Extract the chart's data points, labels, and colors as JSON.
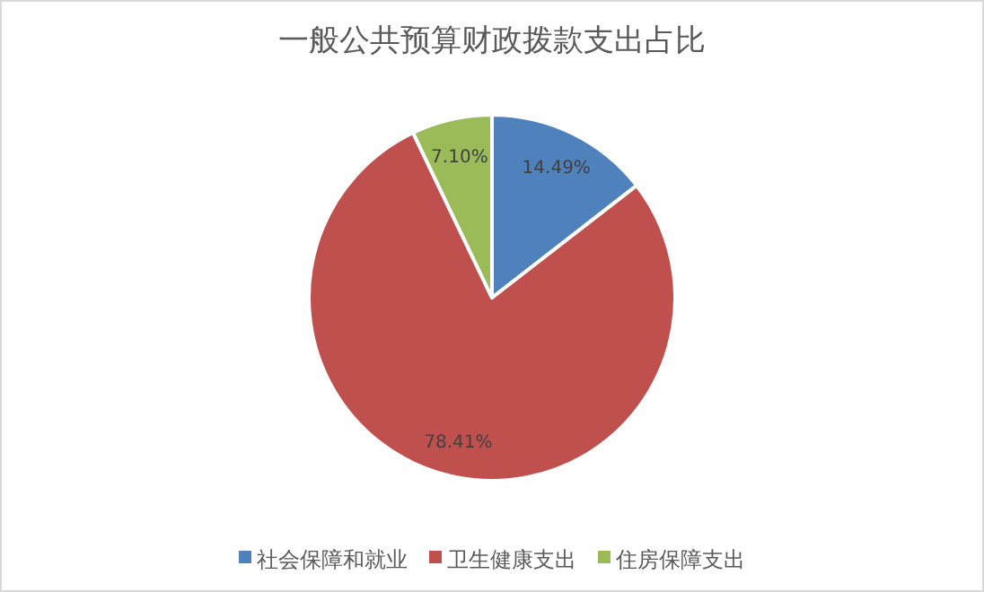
{
  "chart_data": {
    "type": "pie",
    "title": "一般公共预算财政拨款支出占比",
    "categories": [
      "社会保障和就业",
      "卫生健康支出",
      "住房保障支出"
    ],
    "values": [
      14.49,
      78.41,
      7.1
    ],
    "colors": [
      "#4f81bd",
      "#c0504d",
      "#9bbb59"
    ],
    "value_labels": [
      "14.49%",
      "78.41%",
      "7.10%"
    ],
    "legend": "bottom"
  }
}
